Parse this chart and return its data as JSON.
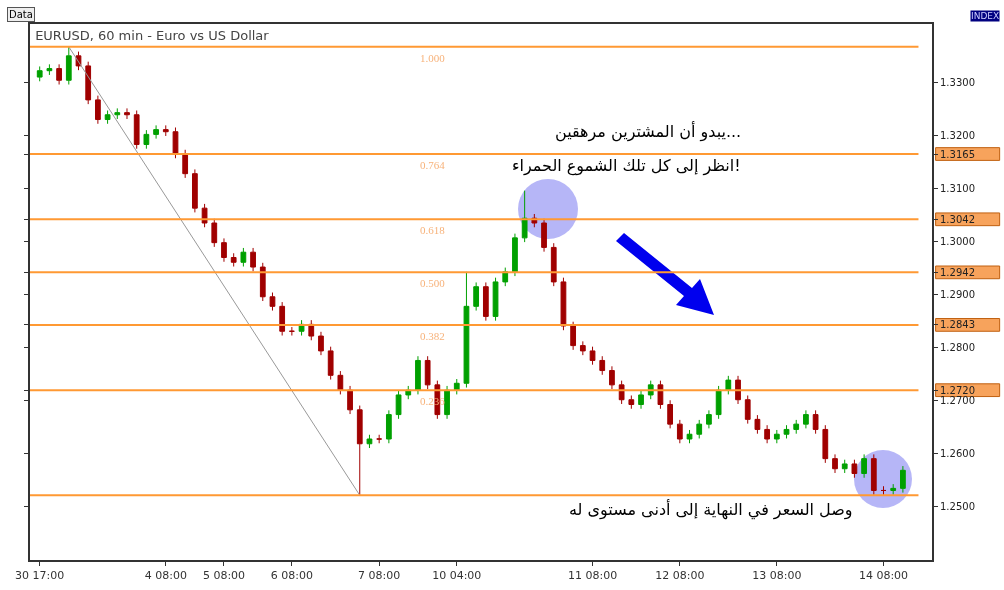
{
  "chart_data": {
    "type": "candlestick",
    "title": "EURUSD, 60 min - Euro vs US Dollar",
    "categories": [
      "30 17:00",
      null,
      null,
      null,
      null,
      null,
      null,
      null,
      null,
      null,
      null,
      null,
      null,
      "4 08:00",
      null,
      null,
      null,
      null,
      null,
      "5 08:00",
      null,
      null,
      null,
      null,
      null,
      null,
      "6 08:00",
      null,
      null,
      null,
      null,
      null,
      null,
      null,
      null,
      "7 08:00",
      null,
      null,
      null,
      null,
      null,
      null,
      null,
      "10 04:00",
      null,
      null,
      null,
      null,
      null,
      null,
      null,
      null,
      null,
      null,
      null,
      null,
      null,
      "11 08:00",
      null,
      null,
      null,
      null,
      null,
      null,
      null,
      null,
      "12 08:00",
      null,
      null,
      null,
      null,
      null,
      null,
      null,
      null,
      null,
      "13 08:00",
      null,
      null,
      null,
      null,
      null,
      null,
      null,
      null,
      null,
      null,
      "14 08:00",
      null,
      null
    ],
    "ohlc": [
      [
        1.331,
        1.333,
        1.3302,
        1.3322
      ],
      [
        1.3322,
        1.3334,
        1.3314,
        1.3326
      ],
      [
        1.3326,
        1.3334,
        1.3296,
        1.3304
      ],
      [
        1.3304,
        1.3367,
        1.3296,
        1.335
      ],
      [
        1.335,
        1.3358,
        1.3323,
        1.3331
      ],
      [
        1.3331,
        1.3339,
        1.3259,
        1.3267
      ],
      [
        1.3267,
        1.3275,
        1.3222,
        1.323
      ],
      [
        1.323,
        1.3247,
        1.3222,
        1.3239
      ],
      [
        1.3239,
        1.3251,
        1.3231,
        1.3243
      ],
      [
        1.3243,
        1.3251,
        1.3231,
        1.3239
      ],
      [
        1.3239,
        1.3247,
        1.3175,
        1.3183
      ],
      [
        1.3183,
        1.321,
        1.3175,
        1.3202
      ],
      [
        1.3202,
        1.3219,
        1.3194,
        1.3211
      ],
      [
        1.3211,
        1.3219,
        1.3199,
        1.3207
      ],
      [
        1.3207,
        1.3215,
        1.3157,
        1.3165
      ],
      [
        1.3165,
        1.3173,
        1.312,
        1.3128
      ],
      [
        1.3128,
        1.3136,
        1.3055,
        1.3063
      ],
      [
        1.3063,
        1.3071,
        1.3027,
        1.3035
      ],
      [
        1.3035,
        1.3043,
        1.299,
        1.2998
      ],
      [
        1.2998,
        1.3006,
        1.2962,
        1.297
      ],
      [
        1.297,
        1.2978,
        1.2953,
        1.2961
      ],
      [
        1.2961,
        1.2988,
        1.2953,
        1.298
      ],
      [
        1.298,
        1.2988,
        1.2944,
        1.2952
      ],
      [
        1.2952,
        1.296,
        1.2888,
        1.2896
      ],
      [
        1.2896,
        1.2904,
        1.287,
        1.2878
      ],
      [
        1.2878,
        1.2886,
        1.2823,
        1.2831
      ],
      [
        1.2831,
        1.2839,
        1.2823,
        1.2831
      ],
      [
        1.2831,
        1.2852,
        1.2823,
        1.2844
      ],
      [
        1.2844,
        1.2852,
        1.2814,
        1.2822
      ],
      [
        1.2822,
        1.283,
        1.2786,
        1.2794
      ],
      [
        1.2794,
        1.2802,
        1.274,
        1.2748
      ],
      [
        1.2748,
        1.2756,
        1.2712,
        1.272
      ],
      [
        1.272,
        1.2728,
        1.2675,
        1.2683
      ],
      [
        1.2683,
        1.2691,
        1.2522,
        1.2619
      ],
      [
        1.2619,
        1.2636,
        1.2611,
        1.2628
      ],
      [
        1.2628,
        1.2636,
        1.262,
        1.2628
      ],
      [
        1.2628,
        1.2682,
        1.262,
        1.2674
      ],
      [
        1.2674,
        1.2719,
        1.2666,
        1.2711
      ],
      [
        1.2711,
        1.2728,
        1.2703,
        1.272
      ],
      [
        1.272,
        1.2784,
        1.2712,
        1.2776
      ],
      [
        1.2776,
        1.2784,
        1.2722,
        1.273
      ],
      [
        1.273,
        1.2738,
        1.2666,
        1.2674
      ],
      [
        1.2674,
        1.2728,
        1.2666,
        1.272
      ],
      [
        1.272,
        1.2741,
        1.2712,
        1.2733
      ],
      [
        1.2733,
        1.2943,
        1.2725,
        1.2878
      ],
      [
        1.2878,
        1.2923,
        1.287,
        1.2915
      ],
      [
        1.2915,
        1.2923,
        1.2851,
        1.2859
      ],
      [
        1.2859,
        1.2932,
        1.2851,
        1.2924
      ],
      [
        1.2924,
        1.2951,
        1.2916,
        1.2943
      ],
      [
        1.2943,
        1.3015,
        1.2935,
        1.3007
      ],
      [
        1.3007,
        1.3096,
        1.2999,
        1.3044
      ],
      [
        1.3044,
        1.3052,
        1.3027,
        1.3035
      ],
      [
        1.3035,
        1.3043,
        1.2981,
        1.2989
      ],
      [
        1.2989,
        1.2997,
        1.2916,
        1.2924
      ],
      [
        1.2924,
        1.2932,
        1.2833,
        1.2841
      ],
      [
        1.2841,
        1.2849,
        1.2796,
        1.2804
      ],
      [
        1.2804,
        1.2812,
        1.2786,
        1.2794
      ],
      [
        1.2794,
        1.2802,
        1.2768,
        1.2776
      ],
      [
        1.2776,
        1.2784,
        1.2749,
        1.2757
      ],
      [
        1.2757,
        1.2765,
        1.2722,
        1.273
      ],
      [
        1.273,
        1.2738,
        1.2694,
        1.2702
      ],
      [
        1.2702,
        1.271,
        1.2685,
        1.2693
      ],
      [
        1.2693,
        1.2719,
        1.2685,
        1.2711
      ],
      [
        1.2711,
        1.2738,
        1.2703,
        1.273
      ],
      [
        1.273,
        1.2738,
        1.2685,
        1.2693
      ],
      [
        1.2693,
        1.2701,
        1.2648,
        1.2656
      ],
      [
        1.2656,
        1.2664,
        1.262,
        1.2628
      ],
      [
        1.2628,
        1.2645,
        1.262,
        1.2637
      ],
      [
        1.2637,
        1.2664,
        1.2629,
        1.2656
      ],
      [
        1.2656,
        1.2682,
        1.2648,
        1.2674
      ],
      [
        1.2674,
        1.2728,
        1.2666,
        1.272
      ],
      [
        1.272,
        1.2747,
        1.2712,
        1.2739
      ],
      [
        1.2739,
        1.2747,
        1.2694,
        1.2702
      ],
      [
        1.2702,
        1.271,
        1.2657,
        1.2665
      ],
      [
        1.2665,
        1.2673,
        1.2638,
        1.2646
      ],
      [
        1.2646,
        1.2654,
        1.262,
        1.2628
      ],
      [
        1.2628,
        1.2645,
        1.262,
        1.2637
      ],
      [
        1.2637,
        1.2654,
        1.2629,
        1.2646
      ],
      [
        1.2646,
        1.2664,
        1.2638,
        1.2656
      ],
      [
        1.2656,
        1.2682,
        1.2648,
        1.2674
      ],
      [
        1.2674,
        1.2682,
        1.2638,
        1.2646
      ],
      [
        1.2646,
        1.2654,
        1.2583,
        1.2591
      ],
      [
        1.2591,
        1.2599,
        1.2564,
        1.2572
      ],
      [
        1.2572,
        1.2589,
        1.2564,
        1.2581
      ],
      [
        1.2581,
        1.2589,
        1.2555,
        1.2563
      ],
      [
        1.2563,
        1.2599,
        1.2555,
        1.2591
      ],
      [
        1.2591,
        1.2599,
        1.2523,
        1.2531
      ],
      [
        1.2531,
        1.2539,
        1.2523,
        1.2531
      ],
      [
        1.2531,
        1.2543,
        1.2523,
        1.2535
      ],
      [
        1.2535,
        1.2577,
        1.2527,
        1.2569
      ]
    ],
    "colors": [
      "#00a000",
      "#00a000",
      "#a00000",
      "#00a000",
      "#a00000",
      "#a00000",
      "#a00000",
      "#00a000",
      "#00a000",
      "#a00000",
      "#a00000",
      "#00a000",
      "#00a000",
      "#a00000",
      "#a00000",
      "#a00000",
      "#a00000",
      "#a00000",
      "#a00000",
      "#a00000",
      "#a00000",
      "#00a000",
      "#a00000",
      "#a00000",
      "#a00000",
      "#a00000",
      "#a00000",
      "#00a000",
      "#a00000",
      "#a00000",
      "#a00000",
      "#a00000",
      "#a00000",
      "#a00000",
      "#00a000",
      "#a00000",
      "#00a000",
      "#00a000",
      "#00a000",
      "#00a000",
      "#a00000",
      "#a00000",
      "#00a000",
      "#00a000",
      "#00a000",
      "#00a000",
      "#a00000",
      "#00a000",
      "#00a000",
      "#00a000",
      "#00a000",
      "#a00000",
      "#a00000",
      "#a00000",
      "#a00000",
      "#a00000",
      "#a00000",
      "#a00000",
      "#a00000",
      "#a00000",
      "#a00000",
      "#a00000",
      "#00a000",
      "#00a000",
      "#a00000",
      "#a00000",
      "#a00000",
      "#00a000",
      "#00a000",
      "#00a000",
      "#00a000",
      "#00a000",
      "#a00000",
      "#a00000",
      "#a00000",
      "#a00000",
      "#00a000",
      "#00a000",
      "#00a000",
      "#00a000",
      "#a00000",
      "#a00000",
      "#a00000",
      "#00a000",
      "#a00000",
      "#00a000",
      "#a00000",
      "#a00000",
      "#00a000",
      "#00a000"
    ],
    "series": [
      {
        "type": "line",
        "color": "#999999",
        "values": [
          null,
          null,
          null,
          1.3367,
          null,
          null,
          null,
          null,
          null,
          null,
          null,
          null,
          null,
          null,
          null,
          null,
          null,
          null,
          null,
          null,
          null,
          null,
          null,
          null,
          null,
          null,
          null,
          null,
          null,
          null,
          null,
          null,
          null,
          1.2522,
          null,
          null,
          null,
          null,
          null,
          null,
          null,
          null,
          null,
          null,
          null,
          null,
          null,
          null,
          null,
          null,
          null,
          null,
          null,
          null,
          null,
          null,
          null,
          null,
          null,
          null,
          null,
          null,
          null,
          null,
          null,
          null,
          null,
          null,
          null,
          null,
          null,
          null,
          null,
          null,
          null,
          null,
          null,
          null,
          null,
          null,
          null,
          null,
          null,
          null,
          null,
          null,
          null,
          null,
          null,
          null
        ]
      }
    ],
    "ylim": [
      1.24,
      1.341
    ],
    "yticks": [
      {
        "value": 1.25,
        "label": "1.2500"
      },
      {
        "value": 1.26,
        "label": "1.2600"
      },
      {
        "value": 1.27,
        "label": "1.2700"
      },
      {
        "value": 1.272,
        "label": "1.2720"
      },
      {
        "value": 1.28,
        "label": "1.2800"
      },
      1.2843,
      {
        "value": 1.29,
        "label": "1.2900"
      },
      1.2942,
      {
        "value": 1.3,
        "label": "1.3000"
      },
      1.3042,
      {
        "value": 1.31,
        "label": "1.3100"
      },
      1.3165,
      {
        "value": 1.32,
        "label": "1.3200"
      },
      {
        "value": 1.33,
        "label": "1.3300"
      }
    ],
    "ref_lines": [
      {
        "axis": "y",
        "value": 1.3367,
        "color": "#ff9933"
      },
      {
        "axis": "y",
        "value": 1.3165,
        "color": "#ff9933"
      },
      {
        "axis": "y",
        "value": 1.3042,
        "color": "#ff9933"
      },
      {
        "axis": "y",
        "value": 1.2942,
        "color": "#ff9933"
      },
      {
        "axis": "y",
        "value": 1.2843,
        "color": "#ff9933"
      },
      {
        "axis": "y",
        "value": 1.272,
        "color": "#ff9933"
      },
      {
        "axis": "y",
        "value": 1.2522,
        "color": "#ff9933"
      }
    ],
    "annotations": [
      "Data",
      "INDEX",
      "يبدو أن المشترين مرهقين...",
      "انظر إلى كل تلك الشموع الحمراء!",
      "وصل السعر في النهاية إلى أدنى مستوى له",
      {
        "text": "1.000",
        "y": 1.3367
      },
      {
        "text": "0.764",
        "y": 1.3165
      },
      {
        "text": "0.618",
        "y": 1.3042
      },
      {
        "text": "0.500",
        "y": 1.2942
      },
      {
        "text": "0.382",
        "y": 1.2843
      },
      {
        "text": "0.236",
        "y": 1.272
      }
    ],
    "tick_labels": "xy"
  }
}
